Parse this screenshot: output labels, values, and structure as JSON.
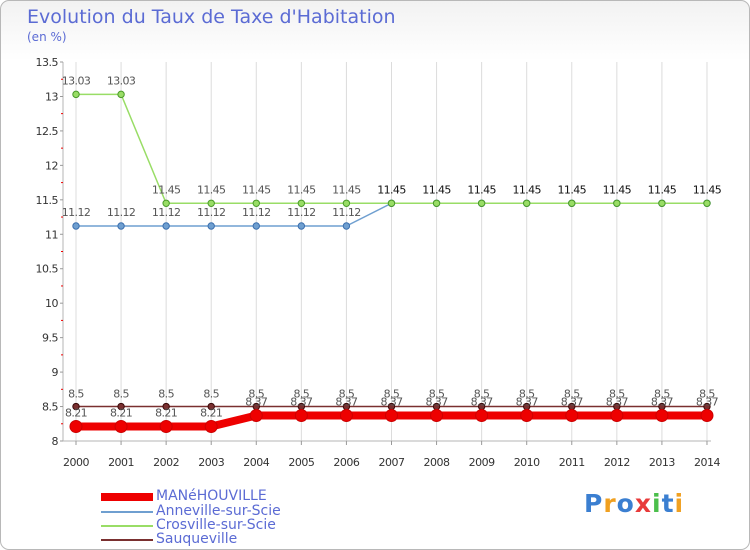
{
  "chart_data": {
    "type": "line",
    "title": "Evolution du Taux de Taxe d'Habitation",
    "subtitle": "(en %)",
    "xlabel": "",
    "ylabel": "",
    "x": [
      "2000",
      "2001",
      "2002",
      "2003",
      "2004",
      "2005",
      "2006",
      "2007",
      "2008",
      "2009",
      "2010",
      "2011",
      "2012",
      "2013",
      "2014"
    ],
    "ylim": [
      8,
      13.5
    ],
    "yticks": [
      "8",
      "8.5",
      "9",
      "9.5",
      "10",
      "10.5",
      "11",
      "11.5",
      "12",
      "12.5",
      "13",
      "13.5"
    ],
    "legend_position": "bottom-left",
    "series": [
      {
        "name": "MANéHOUVILLE",
        "color": "#ee0000",
        "values": [
          8.21,
          8.21,
          8.21,
          8.21,
          8.37,
          8.37,
          8.37,
          8.37,
          8.37,
          8.37,
          8.37,
          8.37,
          8.37,
          8.37,
          8.37
        ],
        "labels": [
          "8.21",
          "8.21",
          "8.21",
          "8.21",
          "8.37",
          "8.37",
          "8.37",
          "8.37",
          "8.37",
          "8.37",
          "8.37",
          "8.37",
          "8.37",
          "8.37",
          "8.37"
        ]
      },
      {
        "name": "Anneville-sur-Scie",
        "color": "#6f9fd0",
        "values": [
          11.12,
          11.12,
          11.12,
          11.12,
          11.12,
          11.12,
          11.12,
          11.45,
          11.45,
          11.45,
          11.45,
          11.45,
          11.45,
          11.45,
          11.45
        ],
        "labels": [
          "11.12",
          "11.12",
          "11.12",
          "11.12",
          "11.12",
          "11.12",
          "11.12",
          "",
          "",
          "",
          "",
          "",
          "",
          "",
          ""
        ]
      },
      {
        "name": "Crosville-sur-Scie",
        "color": "#99dd66",
        "values": [
          13.03,
          13.03,
          11.45,
          11.45,
          11.45,
          11.45,
          11.45,
          11.45,
          11.45,
          11.45,
          11.45,
          11.45,
          11.45,
          11.45,
          11.45
        ],
        "labels": [
          "13.03",
          "13.03",
          "11.45",
          "11.45",
          "11.45",
          "11.45",
          "11.45",
          "11.45",
          "11.45",
          "11.45",
          "11.45",
          "11.45",
          "11.45",
          "11.45",
          "11.45"
        ]
      },
      {
        "name": "Sauqueville",
        "color": "#7a3030",
        "values": [
          8.5,
          8.5,
          8.5,
          8.5,
          8.5,
          8.5,
          8.5,
          8.5,
          8.5,
          8.5,
          8.5,
          8.5,
          8.5,
          8.5,
          8.5
        ],
        "labels": [
          "8.5",
          "8.5",
          "8.5",
          "8.5",
          "8.5",
          "8.5",
          "8.5",
          "8.5",
          "8.5",
          "8.5",
          "8.5",
          "8.5",
          "8.5",
          "8.5",
          "8.5"
        ]
      }
    ]
  },
  "logo": {
    "text": "Proxiti",
    "colors": [
      "#3b7fd1",
      "#f0a020",
      "#3b7fd1",
      "#e83a3a",
      "#4bbf4b",
      "#3b7fd1",
      "#f0a020"
    ]
  }
}
